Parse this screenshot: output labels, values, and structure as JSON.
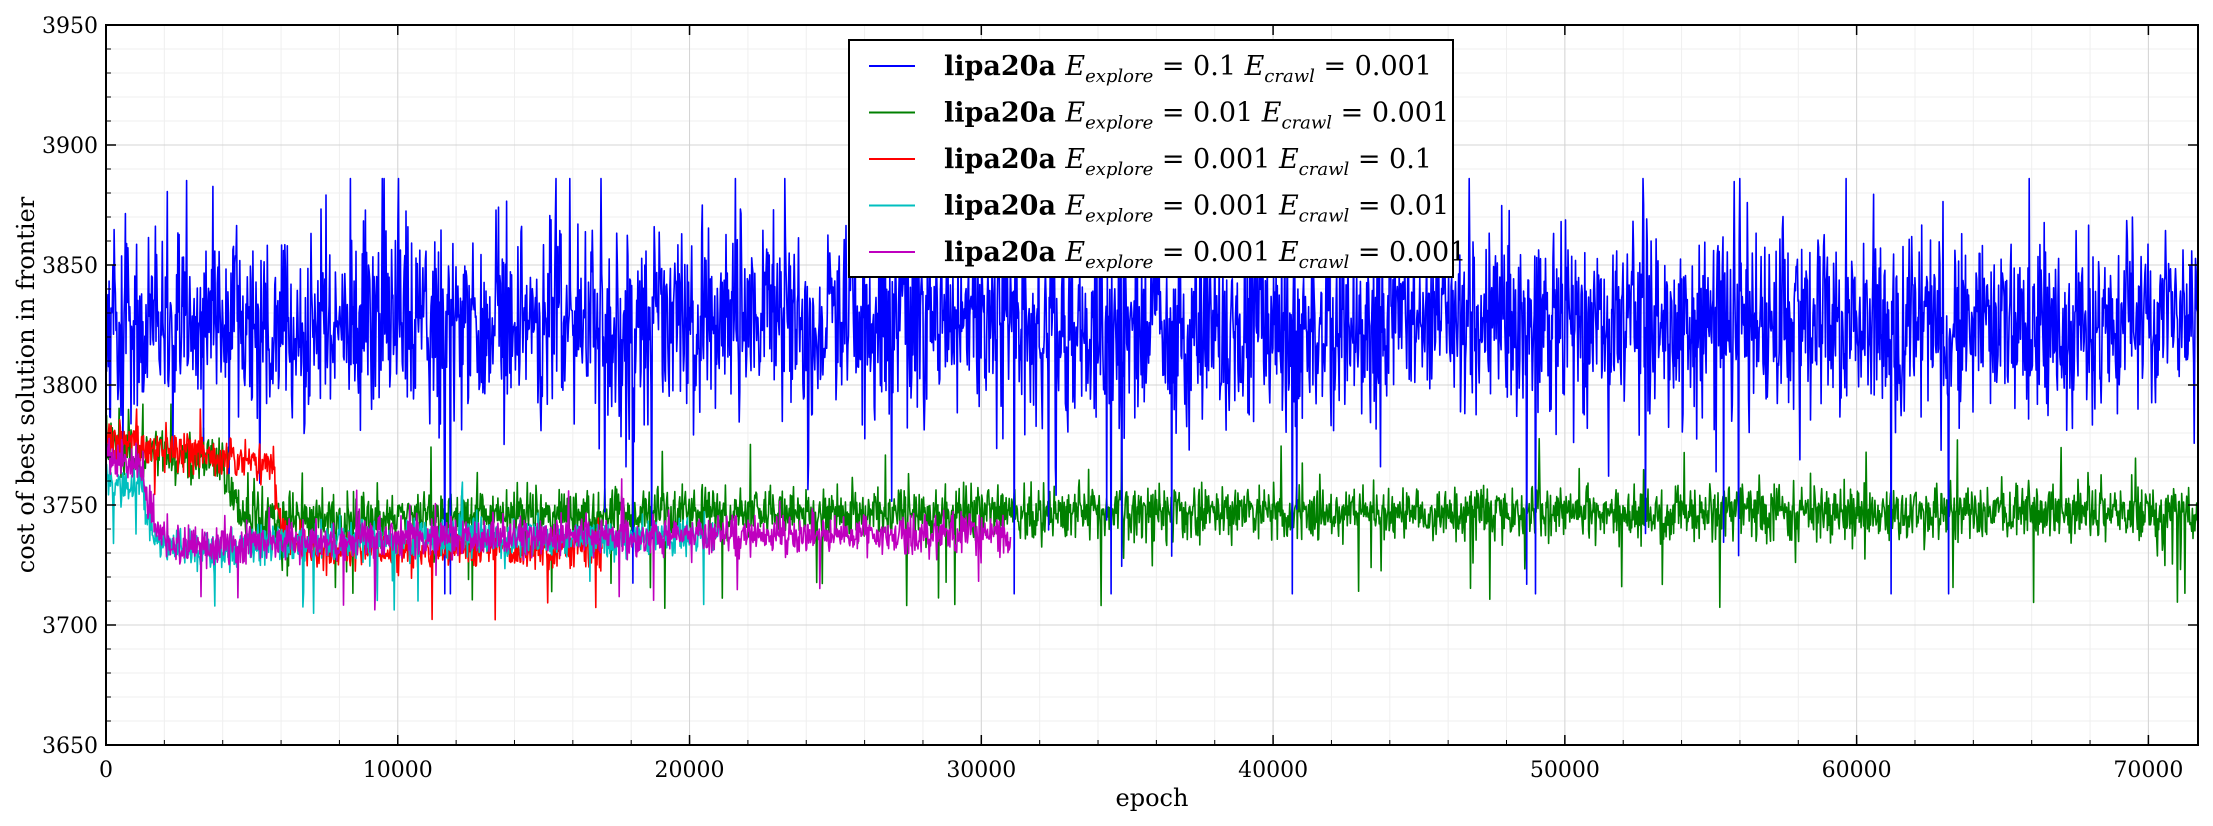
{
  "chart_data": {
    "type": "line",
    "title": "",
    "xlabel": "epoch",
    "ylabel": "cost of best solution in frontier",
    "xlim": [
      0,
      71700
    ],
    "ylim": [
      3650,
      3950
    ],
    "xticks": [
      0,
      10000,
      20000,
      30000,
      40000,
      50000,
      60000,
      70000
    ],
    "yticks": [
      3650,
      3700,
      3750,
      3800,
      3850,
      3900,
      3950
    ],
    "grid": true,
    "legend_position": "top-center",
    "series": [
      {
        "name": "lipa20a E_explore = 0.1 E_crawl = 0.001",
        "legend_prefix": "lipa20a",
        "explore": "0.1",
        "crawl": "0.001",
        "color": "#0000ff",
        "x_range": [
          0,
          71700
        ],
        "start_value": 3820,
        "mean": 3825,
        "noise_amplitude": 28,
        "min": 3713,
        "max": 3886
      },
      {
        "name": "lipa20a E_explore = 0.01 E_crawl = 0.001",
        "legend_prefix": "lipa20a",
        "explore": "0.01",
        "crawl": "0.001",
        "color": "#008000",
        "x_range": [
          0,
          71700
        ],
        "start_value": 3775,
        "mean": 3747,
        "noise_amplitude": 8,
        "min": 3682,
        "max": 3792
      },
      {
        "name": "lipa20a E_explore = 0.001 E_crawl = 0.1",
        "legend_prefix": "lipa20a",
        "explore": "0.001",
        "crawl": "0.1",
        "color": "#ff0000",
        "x_range": [
          0,
          17000
        ],
        "start_value": 3778,
        "mean": 3733,
        "noise_amplitude": 6,
        "min": 3682,
        "max": 3790
      },
      {
        "name": "lipa20a E_explore = 0.001 E_crawl = 0.01",
        "legend_prefix": "lipa20a",
        "explore": "0.001",
        "crawl": "0.01",
        "color": "#00bfbf",
        "x_range": [
          0,
          21000
        ],
        "start_value": 3760,
        "mean": 3737,
        "noise_amplitude": 6,
        "min": 3682,
        "max": 3775
      },
      {
        "name": "lipa20a E_explore = 0.001 E_crawl = 0.001",
        "legend_prefix": "lipa20a",
        "explore": "0.001",
        "crawl": "0.001",
        "color": "#bf00bf",
        "x_range": [
          0,
          31000
        ],
        "start_value": 3770,
        "mean": 3738,
        "noise_amplitude": 6,
        "min": 3682,
        "max": 3782
      }
    ]
  }
}
